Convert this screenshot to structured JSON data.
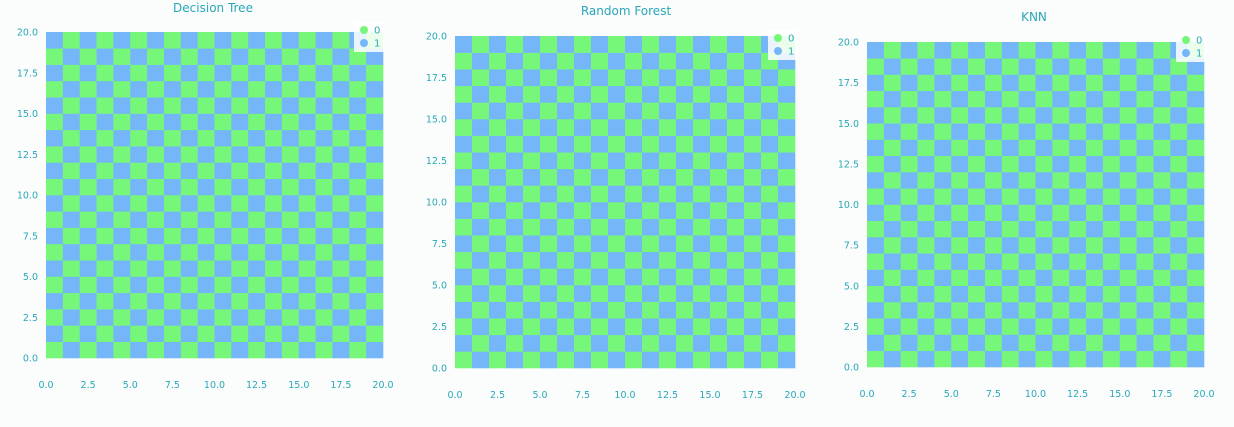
{
  "colors": {
    "class_0": "#77f77a",
    "class_1": "#74b6f7",
    "text": "#2aa7b8"
  },
  "chart_data": [
    {
      "type": "heatmap",
      "title": "Decision Tree",
      "xlim": [
        0,
        20
      ],
      "ylim": [
        0,
        20
      ],
      "xticks": [
        "0.0",
        "2.5",
        "5.0",
        "7.5",
        "10.0",
        "12.5",
        "15.0",
        "17.5",
        "20.0"
      ],
      "yticks": [
        "0.0",
        "2.5",
        "5.0",
        "7.5",
        "10.0",
        "12.5",
        "15.0",
        "17.5",
        "20.0"
      ],
      "grid_cells": [
        20,
        20
      ],
      "pattern": "checkerboard",
      "legend": {
        "placement": "top-right",
        "entries": [
          "0",
          "1"
        ]
      }
    },
    {
      "type": "heatmap",
      "title": "Random Forest",
      "xlim": [
        0,
        20
      ],
      "ylim": [
        0,
        20
      ],
      "xticks": [
        "0.0",
        "2.5",
        "5.0",
        "7.5",
        "10.0",
        "12.5",
        "15.0",
        "17.5",
        "20.0"
      ],
      "yticks": [
        "0.0",
        "2.5",
        "5.0",
        "7.5",
        "10.0",
        "12.5",
        "15.0",
        "17.5",
        "20.0"
      ],
      "grid_cells": [
        20,
        20
      ],
      "pattern": "checkerboard",
      "legend": {
        "placement": "top-right",
        "entries": [
          "0",
          "1"
        ]
      }
    },
    {
      "type": "heatmap",
      "title": "KNN",
      "xlim": [
        0,
        20
      ],
      "ylim": [
        0,
        20
      ],
      "xticks": [
        "0.0",
        "2.5",
        "5.0",
        "7.5",
        "10.0",
        "12.5",
        "15.0",
        "17.5",
        "20.0"
      ],
      "yticks": [
        "0.0",
        "2.5",
        "5.0",
        "7.5",
        "10.0",
        "12.5",
        "15.0",
        "17.5",
        "20.0"
      ],
      "grid_cells": [
        20,
        20
      ],
      "pattern": "checkerboard",
      "legend": {
        "placement": "top-right",
        "entries": [
          "0",
          "1"
        ]
      }
    }
  ]
}
